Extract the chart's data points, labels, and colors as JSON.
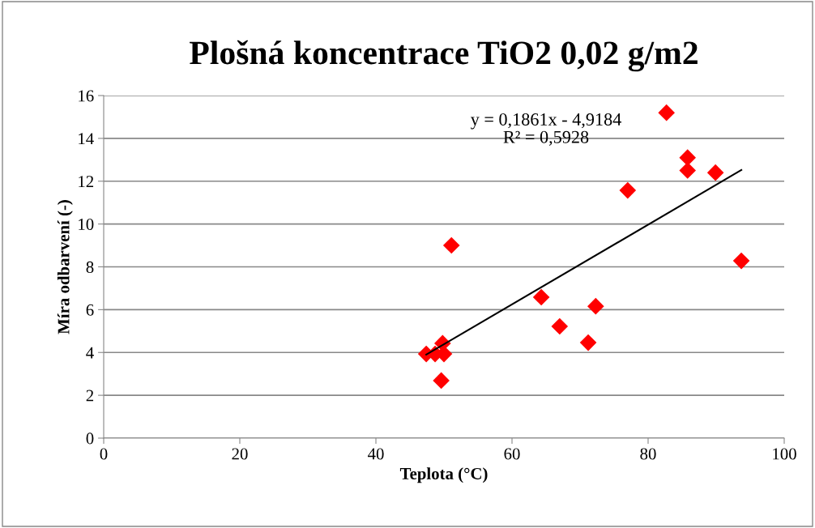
{
  "chart_data": {
    "type": "scatter",
    "title": "Plošná koncentrace TiO2 0,02 g/m2",
    "xlabel": "Teplota (°C)",
    "ylabel": "Míra odbarvení (-)",
    "x": [
      47.4,
      48.7,
      49.8,
      50.0,
      49.6,
      51.1,
      64.3,
      67.0,
      71.2,
      72.3,
      77.0,
      82.7,
      85.8,
      85.8,
      89.9,
      93.7
    ],
    "series": [
      {
        "color": "#ff0000",
        "marker": "diamond",
        "values": [
          3.93,
          3.93,
          4.43,
          3.93,
          2.69,
          9.0,
          6.58,
          5.22,
          4.46,
          6.16,
          11.57,
          15.2,
          13.1,
          12.5,
          12.4,
          8.28
        ]
      },
      {
        "type": "line",
        "color": "#000000",
        "line_style": "solid",
        "marker": "none",
        "x": [
          47.4,
          93.7
        ],
        "values": [
          3.9,
          12.52
        ]
      }
    ],
    "annotations": [
      "y = 0,1861x - 4,9184\nR² = 0,5928"
    ],
    "xlim": [
      0,
      100
    ],
    "xticks": [
      0,
      20,
      40,
      60,
      80,
      100
    ],
    "ylim": [
      0,
      16
    ],
    "yticks": [
      0,
      2,
      4,
      6,
      8,
      10,
      12,
      14,
      16
    ],
    "grid": "y",
    "legend": false
  }
}
